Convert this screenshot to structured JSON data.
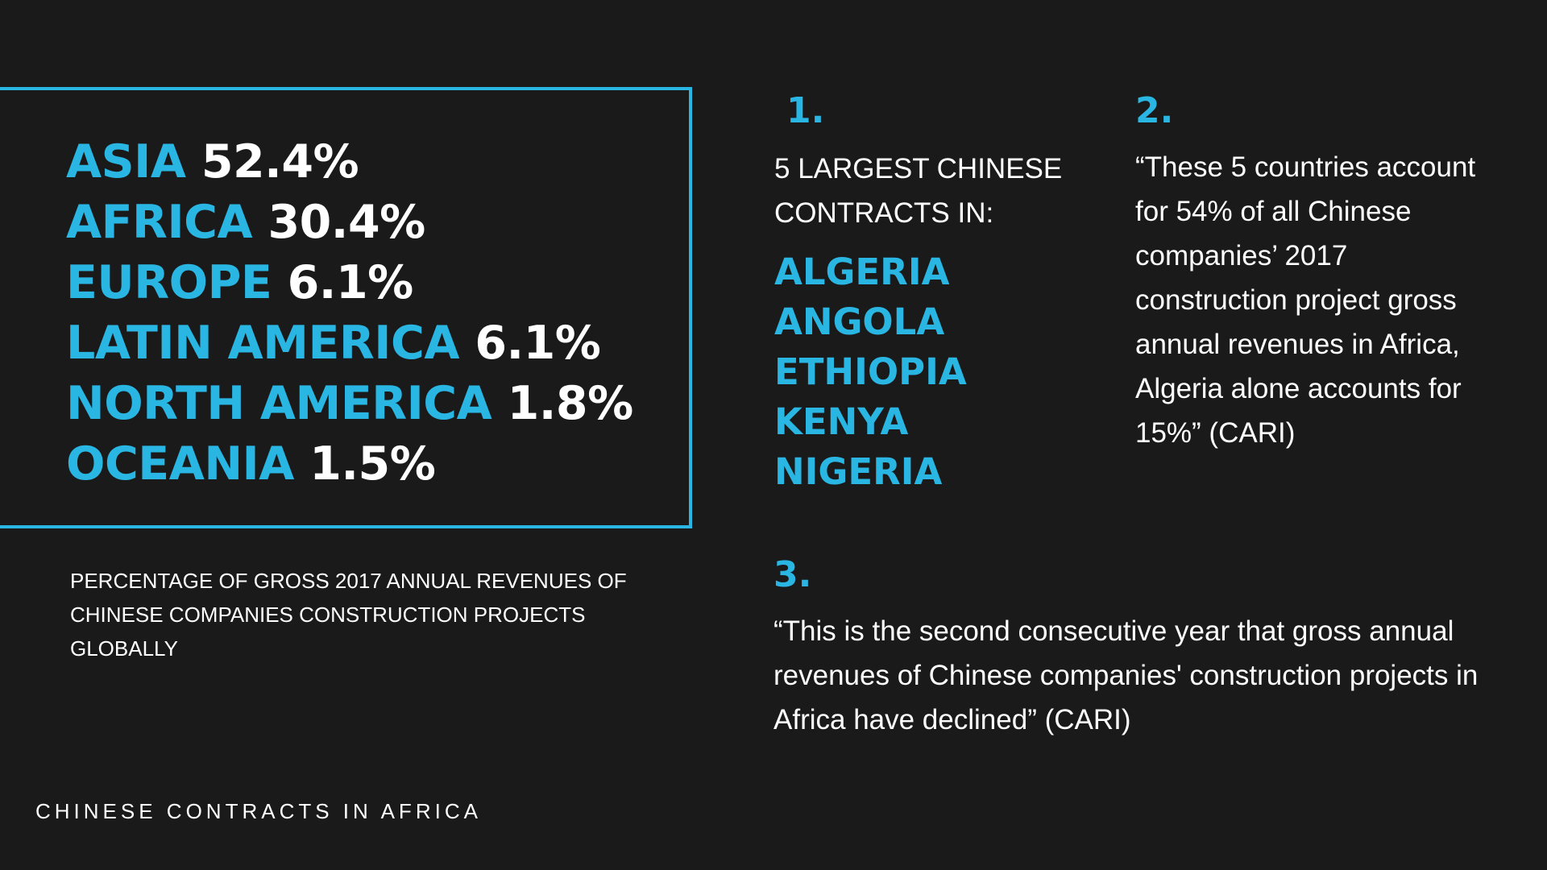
{
  "region_panel": {
    "rows": [
      {
        "name": "ASIA",
        "pct": "52.4%"
      },
      {
        "name": "AFRICA",
        "pct": "30.4%"
      },
      {
        "name": "EUROPE",
        "pct": "6.1%"
      },
      {
        "name": "LATIN AMERICA",
        "pct": "6.1%"
      },
      {
        "name": "NORTH AMERICA",
        "pct": "1.8%"
      },
      {
        "name": "OCEANIA",
        "pct": "1.5%"
      }
    ]
  },
  "caption": "PERCENTAGE OF GROSS  2017 ANNUAL REVENUES OF CHINESE COMPANIES CONSTRUCTION PROJECTS GLOBALLY",
  "footer": "CHINESE CONTRACTS IN AFRICA",
  "section1": {
    "number": "1.",
    "heading": "5 LARGEST CHINESE CONTRACTS IN:",
    "countries": [
      "ALGERIA",
      "ANGOLA",
      "ETHIOPIA",
      "KENYA",
      "NIGERIA"
    ]
  },
  "section2": {
    "number": "2.",
    "quote": "“These 5 countries account for 54% of all Chinese companies’ 2017 construction project gross annual revenues in Africa, Algeria alone accounts for 15%” (CARI)"
  },
  "section3": {
    "number": "3.",
    "quote": "“This is the second consecutive year that gross annual revenues of Chinese companies' construction projects in Africa have declined” (CARI)"
  },
  "colors": {
    "accent": "#2ab6e3",
    "background": "#1a1a1b",
    "text": "#ffffff"
  }
}
